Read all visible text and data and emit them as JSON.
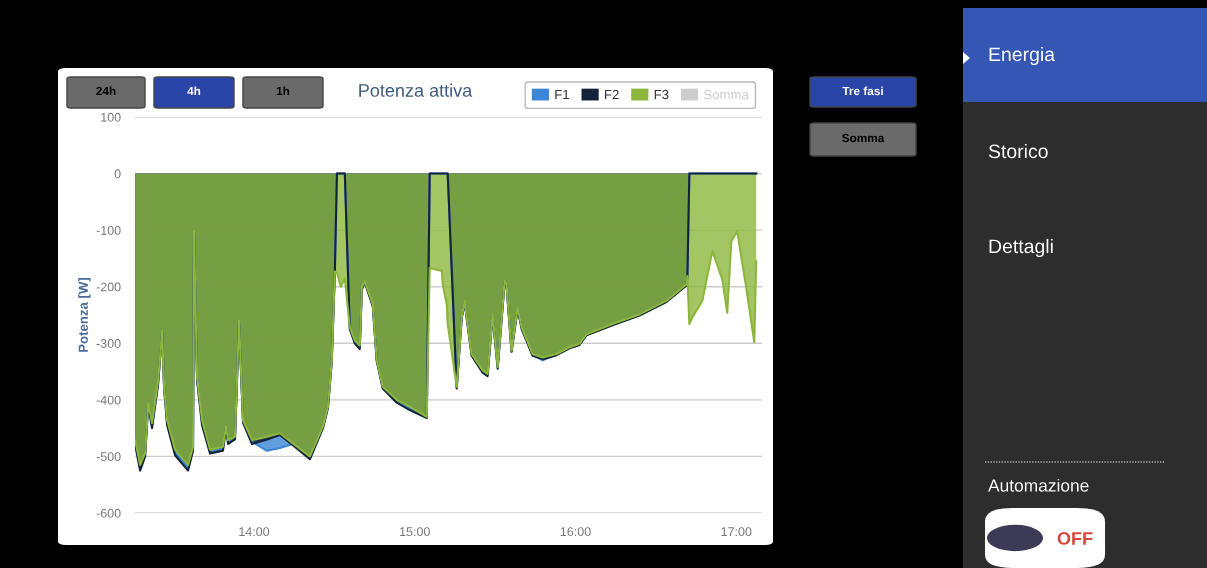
{
  "chart_data": {
    "type": "area",
    "title": "Potenza attiva",
    "ylabel": "Potenza [W]",
    "x": [
      13.261,
      13.292,
      13.323,
      13.342,
      13.366,
      13.404,
      13.429,
      13.441,
      13.46,
      13.509,
      13.59,
      13.621,
      13.627,
      13.646,
      13.677,
      13.727,
      13.807,
      13.826,
      13.839,
      13.882,
      13.907,
      13.932,
      13.988,
      14.081,
      14.161,
      14.242,
      14.348,
      14.429,
      14.46,
      14.484,
      14.503,
      14.516,
      14.54,
      14.565,
      14.596,
      14.627,
      14.658,
      14.671,
      14.689,
      14.739,
      14.764,
      14.801,
      14.888,
      14.969,
      15.075,
      15.093,
      15.168,
      15.174,
      15.199,
      15.205,
      15.261,
      15.292,
      15.311,
      15.323,
      15.354,
      15.422,
      15.453,
      15.484,
      15.516,
      15.559,
      15.571,
      15.602,
      15.64,
      15.665,
      15.733,
      15.795,
      15.882,
      15.963,
      16.025,
      16.068,
      16.23,
      16.398,
      16.565,
      16.689,
      16.696,
      16.708,
      16.727,
      16.789,
      16.851,
      16.913,
      16.944,
      16.969,
      17.006,
      17.062,
      17.112,
      17.124
    ],
    "series": [
      {
        "name": "F1",
        "color": "#3b86d6",
        "values": [
          -475,
          -518,
          -496,
          -408,
          -445,
          -368,
          -279,
          -378,
          -440,
          -492,
          -520,
          -486,
          -103,
          -362,
          -440,
          -490,
          -486,
          -448,
          -474,
          -468,
          -261,
          -438,
          -474,
          -490,
          -485,
          -478,
          -502,
          -448,
          -413,
          -331,
          -174,
          0,
          0,
          0,
          -273,
          -298,
          -307,
          -204,
          -191,
          -233,
          -331,
          -378,
          -402,
          -415,
          -431,
          0,
          0,
          0,
          0,
          0,
          -378,
          -255,
          -226,
          -255,
          -320,
          -350,
          -356,
          -250,
          -343,
          -191,
          -197,
          -314,
          -238,
          -273,
          -320,
          -330,
          -320,
          -308,
          -302,
          -285,
          -267,
          -250,
          -226,
          -197,
          -182,
          0,
          0,
          0,
          0,
          0,
          0,
          0,
          0,
          0,
          0,
          0
        ]
      },
      {
        "name": "F2",
        "color": "#13243a",
        "values": [
          -480,
          -525,
          -500,
          -410,
          -450,
          -372,
          -280,
          -380,
          -445,
          -498,
          -525,
          -490,
          -105,
          -365,
          -445,
          -495,
          -490,
          -450,
          -478,
          -470,
          -262,
          -440,
          -478,
          -470,
          -462,
          -480,
          -505,
          -450,
          -415,
          -332,
          -175,
          0,
          0,
          0,
          -275,
          -300,
          -310,
          -205,
          -192,
          -235,
          -332,
          -380,
          -405,
          -418,
          -432,
          0,
          0,
          0,
          0,
          0,
          -380,
          -256,
          -228,
          -256,
          -322,
          -352,
          -358,
          -252,
          -345,
          -192,
          -198,
          -315,
          -240,
          -275,
          -322,
          -328,
          -321,
          -309,
          -303,
          -286,
          -268,
          -251,
          -227,
          -198,
          -183,
          0,
          0,
          0,
          0,
          0,
          0,
          0,
          0,
          0,
          0,
          0
        ]
      },
      {
        "name": "F3",
        "color": "#8cb63c",
        "values": [
          -471,
          -515,
          -494,
          -406,
          -441,
          -365,
          -278,
          -377,
          -436,
          -488,
          -515,
          -483,
          -102,
          -360,
          -436,
          -488,
          -483,
          -447,
          -471,
          -465,
          -260,
          -436,
          -471,
          -465,
          -459,
          -477,
          -500,
          -447,
          -412,
          -330,
          -173,
          -175,
          -200,
          -185,
          -272,
          -295,
          -304,
          -202,
          -190,
          -231,
          -330,
          -377,
          -400,
          -412,
          -430,
          -167,
          -172,
          -196,
          -231,
          -266,
          -377,
          -254,
          -225,
          -254,
          -319,
          -348,
          -354,
          -249,
          -342,
          -190,
          -196,
          -313,
          -237,
          -272,
          -319,
          -325,
          -319,
          -307,
          -301,
          -284,
          -266,
          -249,
          -225,
          -196,
          -181,
          -266,
          -254,
          -225,
          -137,
          -187,
          -246,
          -120,
          -102,
          -202,
          -298,
          -155
        ]
      },
      {
        "name": "Somma",
        "color": "#cccccc",
        "values": [
          null,
          null,
          null,
          null,
          null,
          null,
          null,
          null,
          null,
          null,
          null,
          null,
          null,
          null,
          null,
          null,
          null,
          null,
          null,
          null,
          null,
          null,
          null,
          null,
          null,
          null,
          null,
          null,
          null,
          null,
          null,
          null,
          null,
          null,
          null,
          null,
          null,
          null,
          null,
          null,
          null,
          null,
          null,
          null,
          null,
          null,
          null,
          null,
          null,
          null,
          null,
          null,
          null,
          null,
          null,
          null,
          null,
          null,
          null,
          null,
          null,
          null,
          null,
          null,
          null,
          null,
          null,
          null,
          null,
          null,
          null,
          null,
          null,
          null,
          null,
          null,
          null,
          null,
          null,
          null,
          null,
          null,
          null,
          null,
          null,
          null
        ]
      }
    ],
    "xlim": [
      13.26,
      17.16
    ],
    "xticks": [
      {
        "value": 14,
        "label": "14:00"
      },
      {
        "value": 15,
        "label": "15:00"
      },
      {
        "value": 16,
        "label": "16:00"
      },
      {
        "value": 17,
        "label": "17:00"
      }
    ],
    "ylim": [
      -600,
      100
    ],
    "yticks": [
      -600,
      -500,
      -400,
      -300,
      -200,
      -100,
      0,
      100
    ],
    "grid": "y",
    "legend": "top right",
    "annotations": [
      "24h",
      "4h",
      "1h",
      "Tre fasi",
      "Somma",
      "Energia",
      "Storico",
      "Dettagli",
      "Automazione",
      "OFF"
    ]
  }
}
